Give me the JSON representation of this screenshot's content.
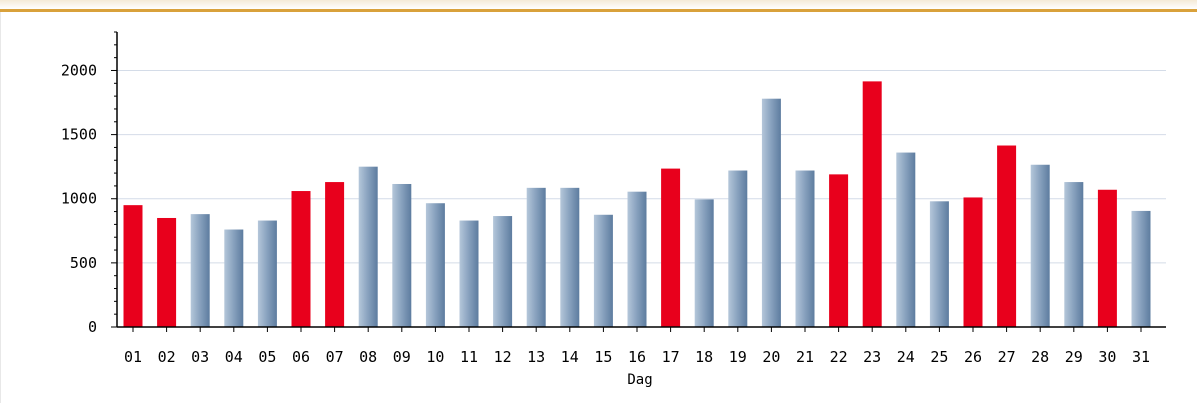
{
  "chart_data": {
    "type": "bar",
    "title": "",
    "xlabel": "Dag",
    "ylabel": "",
    "ylim": [
      0,
      2300
    ],
    "yticks": [
      0,
      500,
      1000,
      1500,
      2000
    ],
    "grid": true,
    "categories": [
      "01",
      "02",
      "03",
      "04",
      "05",
      "06",
      "07",
      "08",
      "09",
      "10",
      "11",
      "12",
      "13",
      "14",
      "15",
      "16",
      "17",
      "18",
      "19",
      "20",
      "21",
      "22",
      "23",
      "24",
      "25",
      "26",
      "27",
      "28",
      "29",
      "30",
      "31"
    ],
    "values": [
      950,
      850,
      880,
      760,
      830,
      1060,
      1130,
      1250,
      1115,
      965,
      830,
      865,
      1085,
      1085,
      875,
      1055,
      1235,
      995,
      1220,
      1780,
      1220,
      1190,
      1915,
      1360,
      980,
      1010,
      1415,
      1265,
      1130,
      1070,
      905
    ],
    "highlighted": [
      "01",
      "02",
      "06",
      "07",
      "17",
      "22",
      "23",
      "26",
      "27",
      "30"
    ],
    "colors": {
      "highlight": "#e8001c",
      "bar_light": "#b5c7da",
      "bar_mid": "#8ba4c0",
      "bar_dark": "#5d7c9f",
      "grid": "#d4dce8",
      "accent_rule": "#d9a13b"
    }
  }
}
